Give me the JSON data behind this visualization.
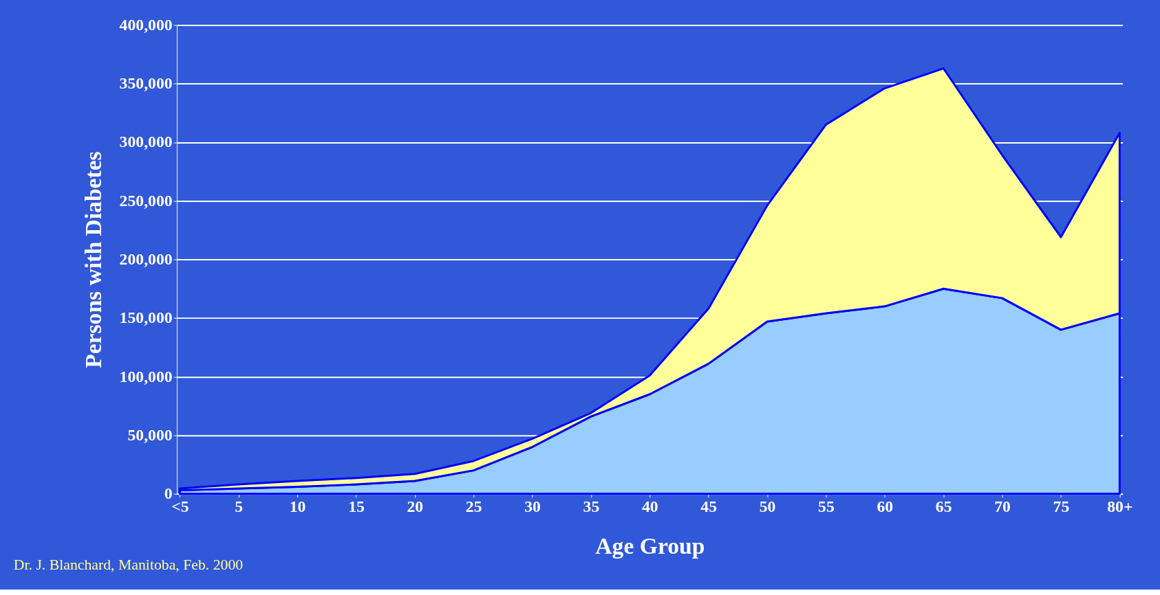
{
  "chart_data": {
    "type": "area",
    "stacked": true,
    "xlabel": "Age Group",
    "ylabel": "Persons with Diabetes",
    "categories": [
      "<5",
      "5",
      "10",
      "15",
      "20",
      "25",
      "30",
      "35",
      "40",
      "45",
      "50",
      "55",
      "60",
      "65",
      "70",
      "75",
      "80+"
    ],
    "series": [
      {
        "color": "#99ccff",
        "values": [
          3000,
          4500,
          6000,
          8000,
          11000,
          20000,
          40000,
          66000,
          85000,
          111000,
          147000,
          154000,
          160000,
          175000,
          167000,
          140000,
          154000
        ]
      },
      {
        "color": "#ffff99",
        "values": [
          1500,
          3500,
          5000,
          5500,
          6000,
          8000,
          7000,
          3000,
          16000,
          47000,
          99000,
          161000,
          186000,
          188000,
          122000,
          79000,
          154000
        ]
      }
    ],
    "ylim": [
      0,
      400000
    ],
    "yticks": [
      0,
      {
        "value": 50000,
        "label": "50,000"
      },
      {
        "value": 100000,
        "label": "100,000"
      },
      {
        "value": 150000,
        "label": "150,000"
      },
      {
        "value": 200000,
        "label": "200,000"
      },
      {
        "value": 250000,
        "label": "250,000"
      },
      {
        "value": 300000,
        "label": "300,000"
      },
      {
        "value": 350000,
        "label": "350,000"
      },
      {
        "value": 400000,
        "label": "400,000"
      }
    ],
    "grid": "y",
    "legend": false,
    "annotations": [
      "Dr. J. Blanchard, Manitoba, Feb. 2000"
    ]
  }
}
